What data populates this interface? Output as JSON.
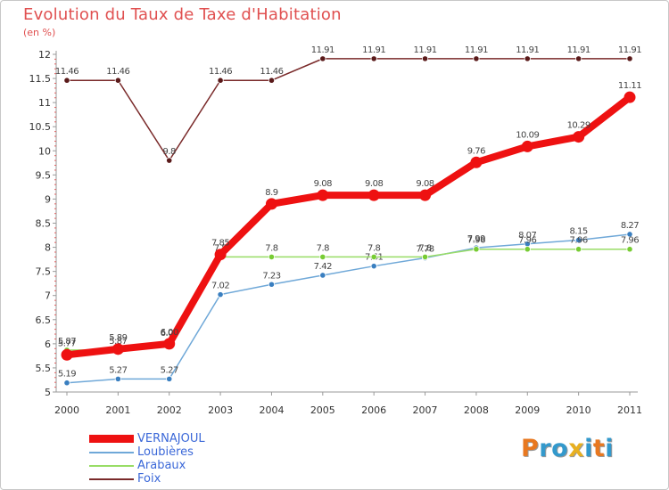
{
  "header": {
    "title": "Evolution du Taux de Taxe d'Habitation",
    "subtitle": "(en %)"
  },
  "logo": {
    "text": "Proxiti",
    "colors": [
      "#e87820",
      "#3399cc",
      "#3399cc",
      "#e8b020",
      "#3399cc",
      "#e87820",
      "#3399cc"
    ]
  },
  "chart_data": {
    "type": "line",
    "title": "Evolution du Taux de Taxe d'Habitation",
    "ylabel": "(en %)",
    "xlabel": "",
    "x": [
      "2000",
      "2001",
      "2002",
      "2003",
      "2004",
      "2005",
      "2006",
      "2007",
      "2008",
      "2009",
      "2010",
      "2011"
    ],
    "ylim": [
      5,
      12
    ],
    "yticks": [
      5,
      5.5,
      6,
      6.5,
      7,
      7.5,
      8,
      8.5,
      9,
      9.5,
      10,
      10.5,
      11,
      11.5,
      12
    ],
    "ytick_labels": [
      "5",
      "5.5",
      "6",
      "6.5",
      "7",
      "7.5",
      "8",
      "8.5",
      "9",
      "9.5",
      "10",
      "10.5",
      "11",
      "11.5",
      "12"
    ],
    "grid": false,
    "legend_position": "bottom-left",
    "series": [
      {
        "name": "Foix",
        "color": "#7a2a2a",
        "values": [
          11.46,
          11.46,
          9.8,
          11.46,
          11.46,
          11.91,
          11.91,
          11.91,
          11.91,
          11.91,
          11.91,
          11.91
        ],
        "labels": [
          "11.46",
          "11.46",
          "9.8",
          "11.46",
          "11.46",
          "11.91",
          "11.91",
          "11.91",
          "11.91",
          "11.91",
          "11.91",
          "11.91"
        ]
      },
      {
        "name": "Loubières",
        "color": "#6fa8d8",
        "values": [
          5.19,
          5.27,
          5.27,
          7.02,
          7.23,
          7.42,
          7.61,
          7.78,
          7.99,
          8.07,
          8.15,
          8.27
        ],
        "labels": [
          "5.19",
          "5.27",
          "5.27",
          "7.02",
          "7.23",
          "7.42",
          "7.61",
          "7.78",
          "7.99",
          "8.07",
          "8.15",
          "8.27"
        ]
      },
      {
        "name": "Arabaux",
        "color": "#99dd66",
        "values": [
          5.87,
          5.87,
          6.03,
          7.8,
          7.8,
          7.8,
          7.8,
          7.8,
          7.96,
          7.96,
          7.96,
          7.96
        ],
        "labels": [
          "5.87",
          "5.87",
          "6.03",
          "7.8",
          "7.8",
          "7.8",
          "7.8",
          "7.8",
          "7.96",
          "7.96",
          "7.96",
          "7.96"
        ]
      },
      {
        "name": "VERNAJOUL",
        "color": "#ee1111",
        "values": [
          5.77,
          5.89,
          6.0,
          7.85,
          8.9,
          9.08,
          9.08,
          9.08,
          9.76,
          10.09,
          10.29,
          11.11
        ],
        "labels": [
          "5.77",
          "5.89",
          "6.00",
          "7.85",
          "8.9",
          "9.08",
          "9.08",
          "9.08",
          "9.76",
          "10.09",
          "10.29",
          "11.11"
        ]
      }
    ],
    "legend": [
      "VERNAJOUL",
      "Loubières",
      "Arabaux",
      "Foix"
    ]
  }
}
